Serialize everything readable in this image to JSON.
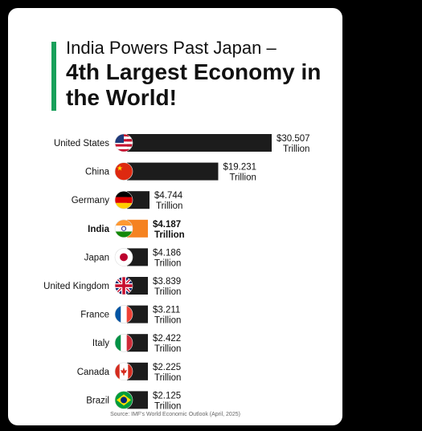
{
  "title_line1": "India Powers Past Japan –",
  "title_line2": "4th Largest Economy in the World!",
  "source": "Source: IMF's World Economic Outlook (April, 2025)",
  "colors": {
    "accent": "#18a05a",
    "bar": "#1c1c1c",
    "highlight_bar": "#f58220"
  },
  "chart_data": {
    "type": "bar",
    "orientation": "horizontal",
    "categories": [
      "United States",
      "China",
      "Germany",
      "India",
      "Japan",
      "United Kingdom",
      "France",
      "Italy",
      "Canada",
      "Brazil"
    ],
    "values": [
      30.507,
      19.231,
      4.744,
      4.187,
      4.186,
      3.839,
      3.211,
      2.422,
      2.225,
      2.125
    ],
    "value_labels": [
      "$30.507",
      "$19.231",
      "$4.744",
      "$4.187",
      "$4.186",
      "$3.839",
      "$3.211",
      "$2.422",
      "$2.225",
      "$2.125"
    ],
    "unit_label": "Trillion",
    "highlight": "India",
    "flag_icons": [
      "us-flag-icon",
      "china-flag-icon",
      "germany-flag-icon",
      "india-flag-icon",
      "japan-flag-icon",
      "uk-flag-icon",
      "france-flag-icon",
      "italy-flag-icon",
      "canada-flag-icon",
      "brazil-flag-icon"
    ]
  }
}
